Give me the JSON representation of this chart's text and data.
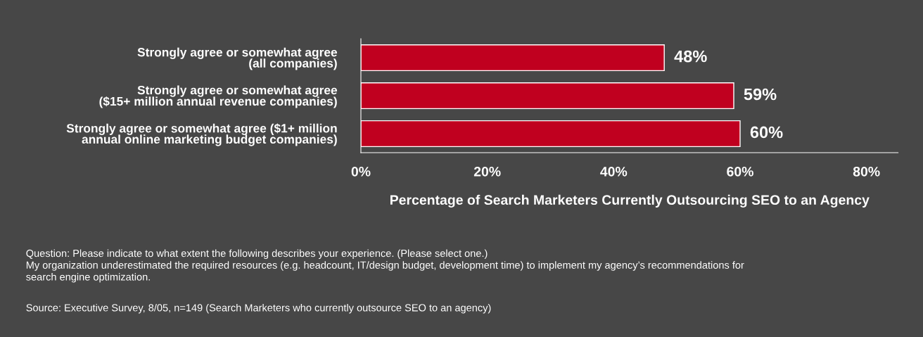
{
  "chart_data": {
    "type": "bar",
    "orientation": "horizontal",
    "categories": [
      "Strongly agree or somewhat agree\n(all companies)",
      "Strongly agree or somewhat agree\n($15+ million annual revenue companies)",
      "Strongly agree or somewhat agree ($1+ million\nannual online marketing budget companies)"
    ],
    "values": [
      48,
      59,
      60
    ],
    "color": "#c0001f",
    "value_labels": [
      "48%",
      "59%",
      "60%"
    ],
    "xlabel": "Percentage of Search Marketers Currently Outsourcing SEO to an Agency",
    "xlim": [
      0,
      85
    ],
    "xticks": [
      {
        "value": 0,
        "label": "0%"
      },
      {
        "value": 20,
        "label": "20%"
      },
      {
        "value": 40,
        "label": "40%"
      },
      {
        "value": 60,
        "label": "60%"
      },
      {
        "value": 80,
        "label": "80%"
      }
    ],
    "grid": false,
    "legend": false,
    "annotations": [
      "Question: Please indicate to what extent the following describes your experience. (Please select one.)\nMy organization underestimated the required resources (e.g. headcount, IT/design budget, development time) to implement my agency’s recommendations for\nsearch engine optimization.",
      "Source: Executive Survey, 8/05, n=149 (Search Marketers who currently outsource SEO to an agency)"
    ]
  }
}
